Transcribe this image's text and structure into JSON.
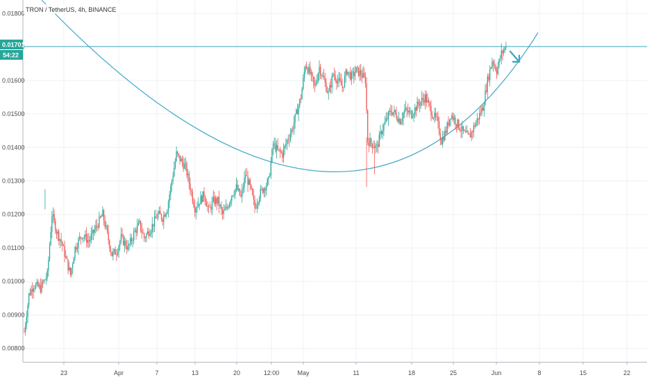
{
  "header": {
    "title": "TRON / TetherUS, 4h, BINANCE"
  },
  "price_badge": {
    "price": "0.01701",
    "countdown": "54:22"
  },
  "colors": {
    "up": "#26a69a",
    "down": "#ef5350",
    "drawing": "#3fa7c6",
    "grid": "#eef0f3",
    "axis": "#b2b5be",
    "badge": "#26a69a"
  },
  "chart_data": {
    "type": "candlestick",
    "symbol": "TRON / TetherUS",
    "interval": "4h",
    "exchange": "BINANCE",
    "y_ticks": [
      "0.00800",
      "0.00900",
      "0.01000",
      "0.01100",
      "0.01200",
      "0.01300",
      "0.01400",
      "0.01500",
      "0.01600",
      "0.01700",
      "0.01800"
    ],
    "ylim": [
      0.0076,
      0.0184
    ],
    "x_ticks": [
      "23",
      "Apr",
      "7",
      "13",
      "20",
      "12:00",
      "May",
      "11",
      "18",
      "25",
      "Jun",
      "8",
      "15",
      "22"
    ],
    "last_price": 0.01701,
    "price_path": [
      [
        0,
        0.0085
      ],
      [
        4,
        0.0096
      ],
      [
        8,
        0.0099
      ],
      [
        14,
        0.0098
      ],
      [
        20,
        0.0102
      ],
      [
        24,
        0.012
      ],
      [
        28,
        0.0115
      ],
      [
        32,
        0.0112
      ],
      [
        36,
        0.0107
      ],
      [
        40,
        0.0102
      ],
      [
        44,
        0.011
      ],
      [
        50,
        0.0114
      ],
      [
        56,
        0.0112
      ],
      [
        62,
        0.0116
      ],
      [
        68,
        0.012
      ],
      [
        72,
        0.0114
      ],
      [
        76,
        0.0108
      ],
      [
        80,
        0.0109
      ],
      [
        84,
        0.0113
      ],
      [
        90,
        0.011
      ],
      [
        96,
        0.0115
      ],
      [
        100,
        0.0117
      ],
      [
        104,
        0.0113
      ],
      [
        110,
        0.0116
      ],
      [
        116,
        0.012
      ],
      [
        120,
        0.0119
      ],
      [
        124,
        0.0122
      ],
      [
        128,
        0.013
      ],
      [
        132,
        0.0138
      ],
      [
        136,
        0.0136
      ],
      [
        140,
        0.0134
      ],
      [
        144,
        0.0128
      ],
      [
        148,
        0.0122
      ],
      [
        152,
        0.0124
      ],
      [
        156,
        0.0126
      ],
      [
        160,
        0.0121
      ],
      [
        164,
        0.0124
      ],
      [
        168,
        0.0124
      ],
      [
        172,
        0.012
      ],
      [
        176,
        0.0122
      ],
      [
        180,
        0.0126
      ],
      [
        184,
        0.0128
      ],
      [
        188,
        0.0125
      ],
      [
        192,
        0.0132
      ],
      [
        196,
        0.0128
      ],
      [
        200,
        0.0122
      ],
      [
        204,
        0.0126
      ],
      [
        208,
        0.0128
      ],
      [
        212,
        0.013
      ],
      [
        216,
        0.0141
      ],
      [
        220,
        0.0139
      ],
      [
        224,
        0.0138
      ],
      [
        228,
        0.0142
      ],
      [
        232,
        0.0145
      ],
      [
        236,
        0.015
      ],
      [
        240,
        0.0155
      ],
      [
        244,
        0.0165
      ],
      [
        248,
        0.0162
      ],
      [
        252,
        0.0158
      ],
      [
        256,
        0.0164
      ],
      [
        260,
        0.016
      ],
      [
        264,
        0.0156
      ],
      [
        268,
        0.0162
      ],
      [
        272,
        0.016
      ],
      [
        276,
        0.0158
      ],
      [
        280,
        0.0163
      ],
      [
        284,
        0.0161
      ],
      [
        288,
        0.0163
      ],
      [
        292,
        0.0162
      ],
      [
        296,
        0.016
      ],
      [
        298,
        0.0142
      ],
      [
        302,
        0.0141
      ],
      [
        306,
        0.014
      ],
      [
        310,
        0.0145
      ],
      [
        314,
        0.0148
      ],
      [
        318,
        0.0151
      ],
      [
        322,
        0.015
      ],
      [
        326,
        0.0148
      ],
      [
        330,
        0.0151
      ],
      [
        336,
        0.015
      ],
      [
        342,
        0.0153
      ],
      [
        348,
        0.0155
      ],
      [
        354,
        0.015
      ],
      [
        358,
        0.0148
      ],
      [
        362,
        0.0142
      ],
      [
        366,
        0.0145
      ],
      [
        370,
        0.015
      ],
      [
        374,
        0.0148
      ],
      [
        378,
        0.0146
      ],
      [
        382,
        0.0144
      ],
      [
        386,
        0.0143
      ],
      [
        390,
        0.0146
      ],
      [
        394,
        0.0149
      ],
      [
        398,
        0.0152
      ],
      [
        402,
        0.016
      ],
      [
        406,
        0.0166
      ],
      [
        410,
        0.0163
      ],
      [
        414,
        0.0168
      ],
      [
        418,
        0.017
      ]
    ],
    "annotations": [
      {
        "type": "horizontal_line",
        "value": 0.01701
      },
      {
        "type": "rounding_bottom_arc"
      },
      {
        "type": "arrow"
      }
    ]
  }
}
